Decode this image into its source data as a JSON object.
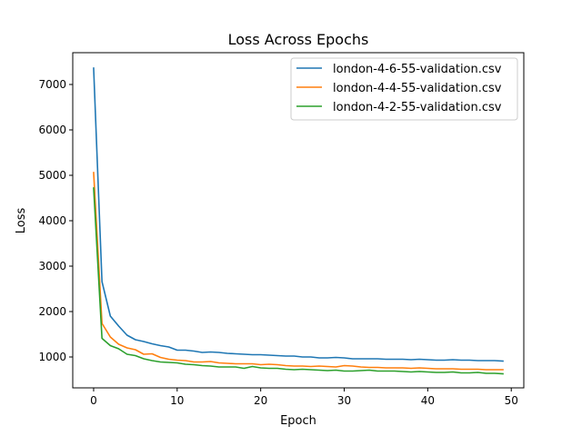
{
  "chart_data": {
    "type": "line",
    "title": "Loss Across Epochs",
    "xlabel": "Epoch",
    "ylabel": "Loss",
    "xlim": [
      -2.5,
      51.5
    ],
    "ylim": [
      320,
      7700
    ],
    "xticks": [
      0,
      10,
      20,
      30,
      40,
      50
    ],
    "yticks": [
      1000,
      2000,
      3000,
      4000,
      5000,
      6000,
      7000
    ],
    "grid": false,
    "legend_position": "top-right",
    "x": [
      0,
      1,
      2,
      3,
      4,
      5,
      6,
      7,
      8,
      9,
      10,
      11,
      12,
      13,
      14,
      15,
      16,
      17,
      18,
      19,
      20,
      21,
      22,
      23,
      24,
      25,
      26,
      27,
      28,
      29,
      30,
      31,
      32,
      33,
      34,
      35,
      36,
      37,
      38,
      39,
      40,
      41,
      42,
      43,
      44,
      45,
      46,
      47,
      48,
      49
    ],
    "series": [
      {
        "name": "london-4-6-55-validation.csv",
        "color": "#1f77b4",
        "values": [
          7360,
          2660,
          1900,
          1680,
          1480,
          1380,
          1340,
          1290,
          1250,
          1220,
          1150,
          1150,
          1130,
          1100,
          1110,
          1100,
          1080,
          1070,
          1060,
          1050,
          1050,
          1040,
          1030,
          1020,
          1020,
          1000,
          1000,
          980,
          980,
          990,
          980,
          960,
          960,
          960,
          960,
          950,
          950,
          950,
          940,
          950,
          940,
          930,
          930,
          940,
          930,
          930,
          920,
          920,
          920,
          910
        ]
      },
      {
        "name": "london-4-4-55-validation.csv",
        "color": "#ff7f0e",
        "values": [
          5060,
          1740,
          1440,
          1280,
          1200,
          1160,
          1060,
          1070,
          990,
          950,
          930,
          920,
          890,
          890,
          900,
          870,
          860,
          850,
          850,
          850,
          830,
          840,
          830,
          810,
          800,
          800,
          790,
          800,
          790,
          780,
          810,
          800,
          780,
          770,
          770,
          760,
          760,
          760,
          750,
          760,
          750,
          740,
          740,
          740,
          730,
          730,
          730,
          720,
          720,
          720
        ]
      },
      {
        "name": "london-4-2-55-validation.csv",
        "color": "#2ca02c",
        "values": [
          4720,
          1410,
          1250,
          1180,
          1060,
          1030,
          960,
          920,
          890,
          880,
          870,
          840,
          830,
          810,
          800,
          780,
          780,
          780,
          750,
          790,
          760,
          750,
          750,
          730,
          720,
          730,
          720,
          710,
          700,
          710,
          690,
          690,
          700,
          710,
          690,
          690,
          690,
          680,
          670,
          680,
          670,
          660,
          660,
          670,
          650,
          650,
          660,
          640,
          640,
          630
        ]
      }
    ]
  }
}
